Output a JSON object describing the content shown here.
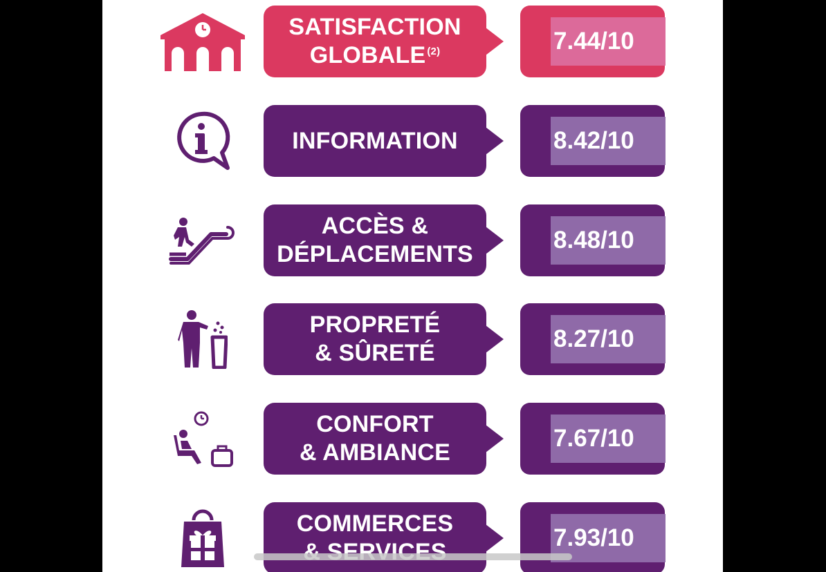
{
  "colors": {
    "primary_red": "#db3960",
    "primary_purple": "#5f1f70",
    "score_highlight_red": "#dc6a9a",
    "score_highlight_purple": "#8f6aa8"
  },
  "rows": [
    {
      "icon": "station-clock-icon",
      "label_line1": "SATISFACTION",
      "label_line2": "GLOBALE",
      "label_sup": "(2)",
      "score": "7.44/10"
    },
    {
      "icon": "info-speech-bubble-icon",
      "label_line1": "INFORMATION",
      "label_line2": "",
      "score": "8.42/10"
    },
    {
      "icon": "person-escalator-icon",
      "label_line1": "ACCÈS &",
      "label_line2": "DÉPLACEMENTS",
      "score": "8.48/10"
    },
    {
      "icon": "person-trash-bin-icon",
      "label_line1": "PROPRETÉ",
      "label_line2": "& SÛRETÉ",
      "score": "8.27/10"
    },
    {
      "icon": "seated-person-clock-luggage-icon",
      "label_line1": "CONFORT",
      "label_line2": "& AMBIANCE",
      "score": "7.67/10"
    },
    {
      "icon": "shopping-bag-gift-icon",
      "label_line1": "COMMERCES",
      "label_line2": "& SERVICES",
      "score": "7.93/10"
    }
  ]
}
